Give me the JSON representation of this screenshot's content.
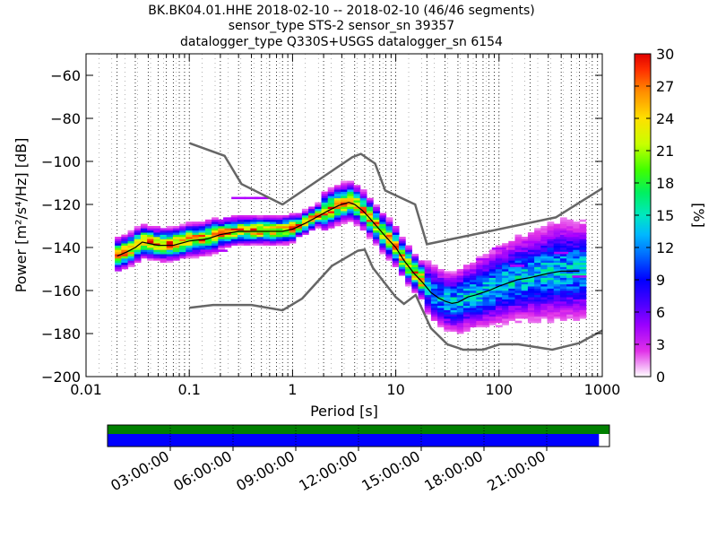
{
  "title_lines": [
    "BK.BK04.01.HHE   2018-02-10 -- 2018-02-10  (46/46 segments)",
    "sensor_type STS-2 sensor_sn 39357",
    "datalogger_type Q330S+USGS datalogger_sn 6154"
  ],
  "chart_data": {
    "type": "heatmap",
    "title": "BK.BK04.01.HHE   2018-02-10 -- 2018-02-10  (46/46 segments)",
    "xlabel": "Period [s]",
    "ylabel": "Power [m²/s⁴/Hz] [dB]",
    "x_scale": "log",
    "xlim": [
      0.01,
      1000
    ],
    "ylim": [
      -200,
      -50
    ],
    "x_ticks": [
      0.01,
      0.1,
      1,
      10,
      100,
      1000
    ],
    "x_tick_labels": [
      "0.01",
      "0.1",
      "1",
      "10",
      "100",
      "1000"
    ],
    "y_ticks": [
      -200,
      -180,
      -160,
      -140,
      -120,
      -100,
      -80,
      -60
    ],
    "y_tick_labels": [
      "−200",
      "−180",
      "−160",
      "−140",
      "−120",
      "−100",
      "−80",
      "−60"
    ],
    "grid": "dotted vertical",
    "colorbar": {
      "label": "[%]",
      "range": [
        0,
        30
      ],
      "ticks": [
        0,
        3,
        6,
        9,
        12,
        15,
        18,
        21,
        24,
        27,
        30
      ]
    },
    "noise_model_high": {
      "period": [
        0.1,
        0.22,
        0.32,
        0.8,
        3.8,
        4.6,
        6.3,
        7.9,
        15.4,
        20,
        354.8,
        1000
      ],
      "power": [
        -91.5,
        -97.4,
        -110.5,
        -120,
        -98,
        -96.5,
        -101,
        -113.5,
        -120,
        -138.5,
        -126,
        -112.5
      ]
    },
    "noise_model_low": {
      "period": [
        0.1,
        0.17,
        0.4,
        0.8,
        1.24,
        2.4,
        4.3,
        5,
        6,
        10,
        12,
        15.6,
        21.9,
        31.6,
        45,
        70,
        101,
        154,
        328,
        600,
        1000
      ],
      "power": [
        -168,
        -166.7,
        -166.7,
        -169.2,
        -163.7,
        -148.6,
        -141.5,
        -141,
        -149.4,
        -163.1,
        -166.2,
        -162.1,
        -177.5,
        -185,
        -187.5,
        -187.5,
        -185,
        -185,
        -187.5,
        -184.4,
        -178.6
      ]
    },
    "median_psd": {
      "period": [
        0.02,
        0.025,
        0.03,
        0.035,
        0.05,
        0.07,
        0.1,
        0.15,
        0.2,
        0.3,
        0.5,
        0.8,
        1,
        1.3,
        1.7,
        2.2,
        2.8,
        3.5,
        4,
        4.8,
        5.5,
        6.5,
        8,
        10,
        12,
        15,
        18,
        22,
        26,
        30,
        35,
        40,
        50,
        60,
        80,
        100,
        150,
        200,
        300,
        400,
        600
      ],
      "power": [
        -144,
        -142,
        -140,
        -137.5,
        -139,
        -139,
        -137,
        -136,
        -134,
        -132.5,
        -132.5,
        -132.5,
        -131.5,
        -129,
        -126,
        -123,
        -120.5,
        -119,
        -120,
        -123,
        -126,
        -130,
        -135,
        -140,
        -146,
        -152,
        -156,
        -161,
        -163.5,
        -165,
        -166,
        -165.5,
        -163,
        -162,
        -160,
        -158,
        -155,
        -154,
        -152,
        -151,
        -151
      ]
    },
    "timeline": {
      "tick_labels": [
        "03:00:00",
        "06:00:00",
        "09:00:00",
        "12:00:00",
        "15:00:00",
        "18:00:00",
        "21:00:00"
      ],
      "tick_hours": [
        3,
        6,
        9,
        12,
        15,
        18,
        21
      ],
      "range_hours": [
        0,
        24
      ],
      "data_coverage_end_hour": 23.5,
      "colors": {
        "top": "#008000",
        "bottom": "#0000ff"
      }
    }
  }
}
